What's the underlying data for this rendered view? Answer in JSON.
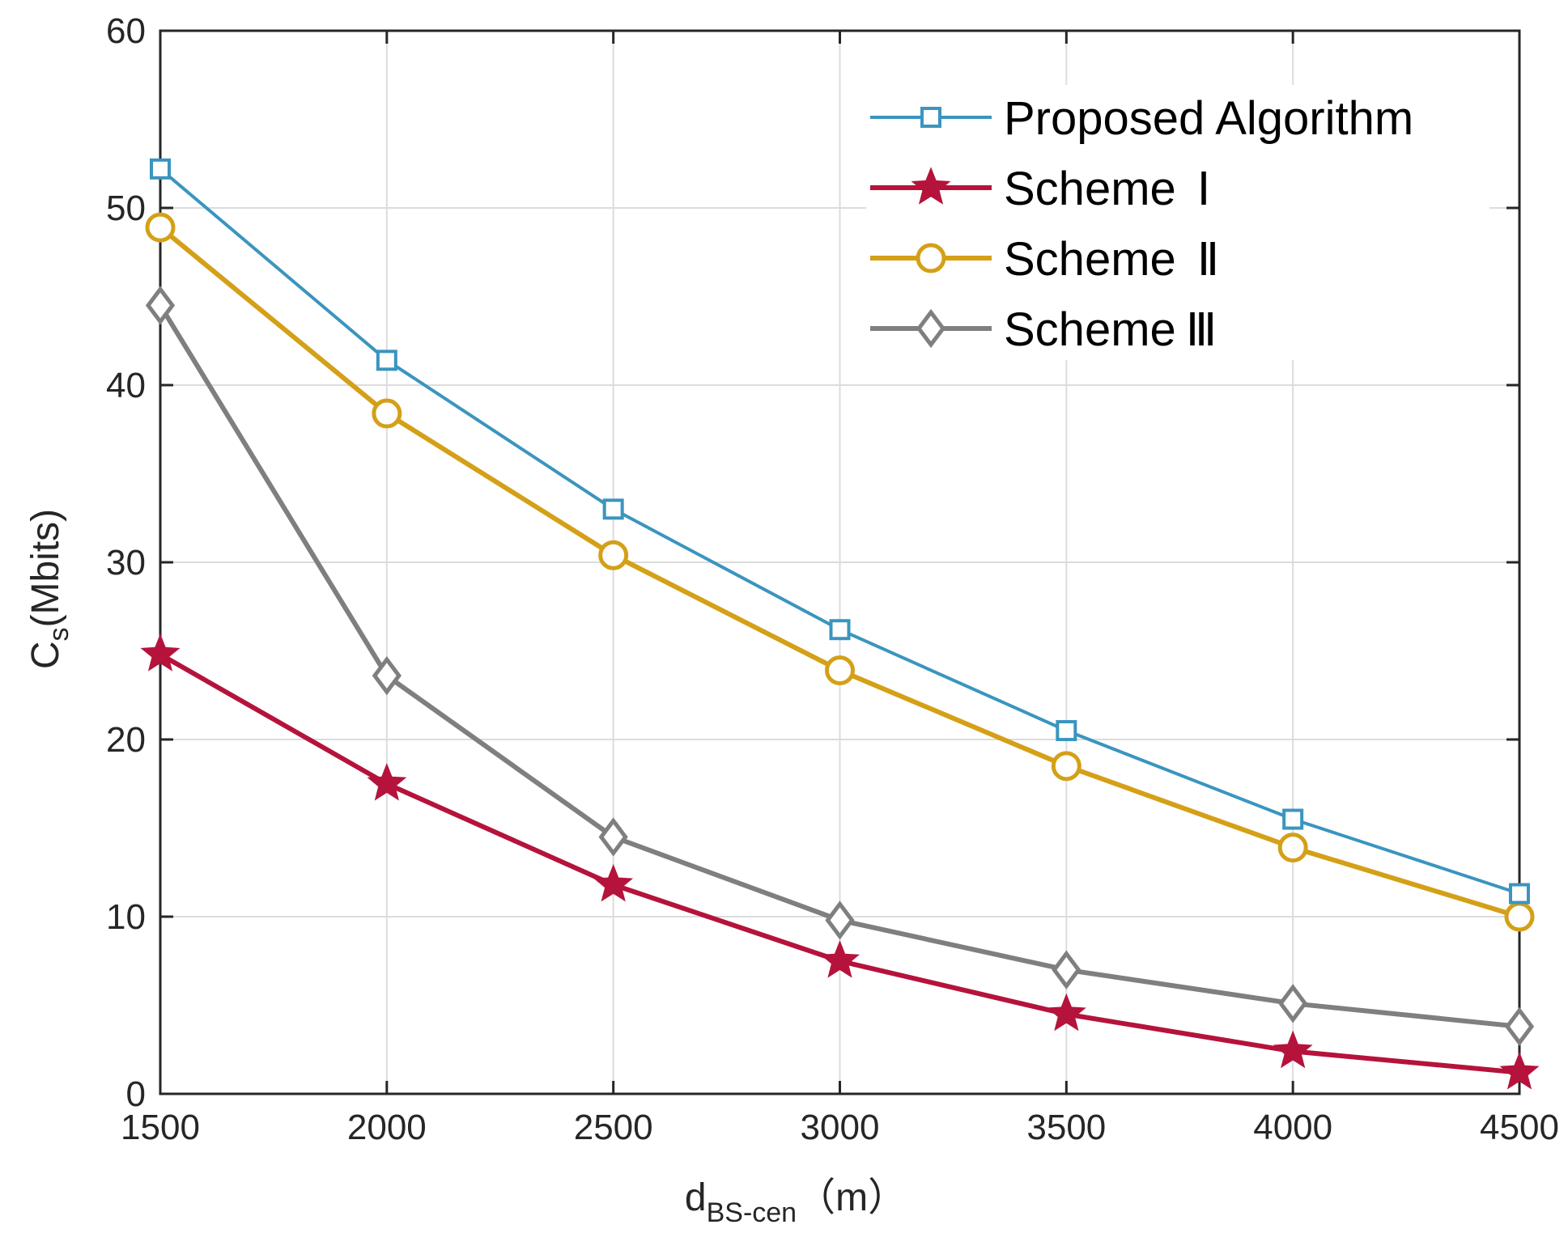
{
  "chart_data": {
    "type": "line",
    "title": "",
    "x": [
      1500,
      2000,
      2500,
      3000,
      3500,
      4000,
      4500
    ],
    "xlim": [
      1500,
      4500
    ],
    "ylim": [
      0,
      60
    ],
    "xticks": [
      "1500",
      "2000",
      "2500",
      "3000",
      "3500",
      "4000",
      "4500"
    ],
    "yticks": [
      "0",
      "10",
      "20",
      "30",
      "40",
      "50",
      "60"
    ],
    "xlabel": {
      "main": "d",
      "sub": "BS-cen",
      "unit": "（m）"
    },
    "ylabel": {
      "main": "C",
      "sub": "s",
      "unit": "(Mbits)"
    },
    "grid": true,
    "legend_position": "top-right",
    "series": [
      {
        "name": "Proposed Algorithm",
        "label_main": "Proposed Algorithm",
        "label_roman": "",
        "color": "#3a95bf",
        "marker": "square",
        "values": [
          52.2,
          41.4,
          33.0,
          26.2,
          20.5,
          15.5,
          11.3
        ]
      },
      {
        "name": "Scheme Ⅰ",
        "label_main": "Scheme",
        "label_roman": "Ⅰ",
        "color": "#b5133c",
        "marker": "star",
        "values": [
          24.8,
          17.5,
          11.8,
          7.5,
          4.5,
          2.4,
          1.2
        ]
      },
      {
        "name": "Scheme Ⅱ",
        "label_main": "Scheme",
        "label_roman": "Ⅱ",
        "color": "#d4a017",
        "marker": "circle",
        "values": [
          48.9,
          38.4,
          30.4,
          23.9,
          18.5,
          13.9,
          10.0
        ]
      },
      {
        "name": "Scheme Ⅲ",
        "label_main": "Scheme",
        "label_roman": "Ⅲ",
        "color": "#7f7f7f",
        "marker": "diamond",
        "values": [
          44.5,
          23.6,
          14.5,
          9.8,
          7.0,
          5.1,
          3.8
        ]
      }
    ]
  }
}
